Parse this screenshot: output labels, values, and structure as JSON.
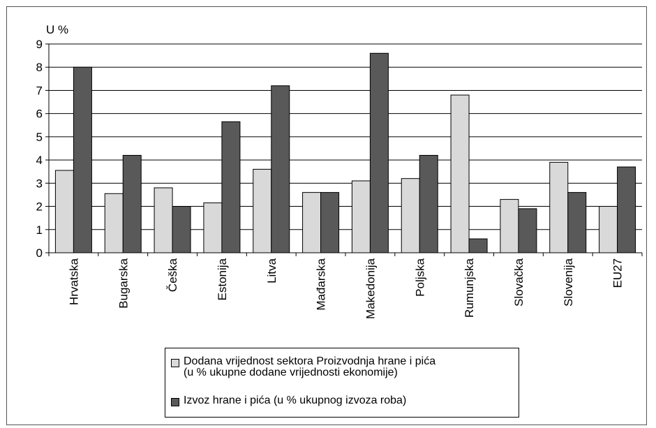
{
  "chart_data": {
    "type": "bar",
    "ylabel": "U %",
    "ylim": [
      0,
      9
    ],
    "yticks": [
      "0",
      "1",
      "2",
      "3",
      "4",
      "5",
      "6",
      "7",
      "8",
      "9"
    ],
    "grid": true,
    "categories": [
      "Hrvatska",
      "Bugarska",
      "Češka",
      "Estonija",
      "Litva",
      "Mađarska",
      "Makedonija",
      "Poljska",
      "Rumunjska",
      "Slovačka",
      "Slovenija",
      "EU27"
    ],
    "series": [
      {
        "name_lines": [
          "Dodana vrijednost sektora Proizvodnja hrane i pića",
          "(u % ukupne dodane vrijednosti ekonomije)"
        ],
        "color": "#d9d9d9",
        "values": [
          3.55,
          2.55,
          2.8,
          2.15,
          3.6,
          2.6,
          3.1,
          3.2,
          6.8,
          2.3,
          3.9,
          2.0
        ]
      },
      {
        "name_lines": [
          "Izvoz hrane i pića (u % ukupnog izvoza roba)"
        ],
        "color": "#595959",
        "values": [
          8.0,
          4.2,
          2.0,
          5.65,
          7.2,
          2.6,
          8.6,
          4.2,
          0.6,
          1.9,
          2.6,
          3.7
        ]
      }
    ],
    "legend_position": "bottom"
  }
}
